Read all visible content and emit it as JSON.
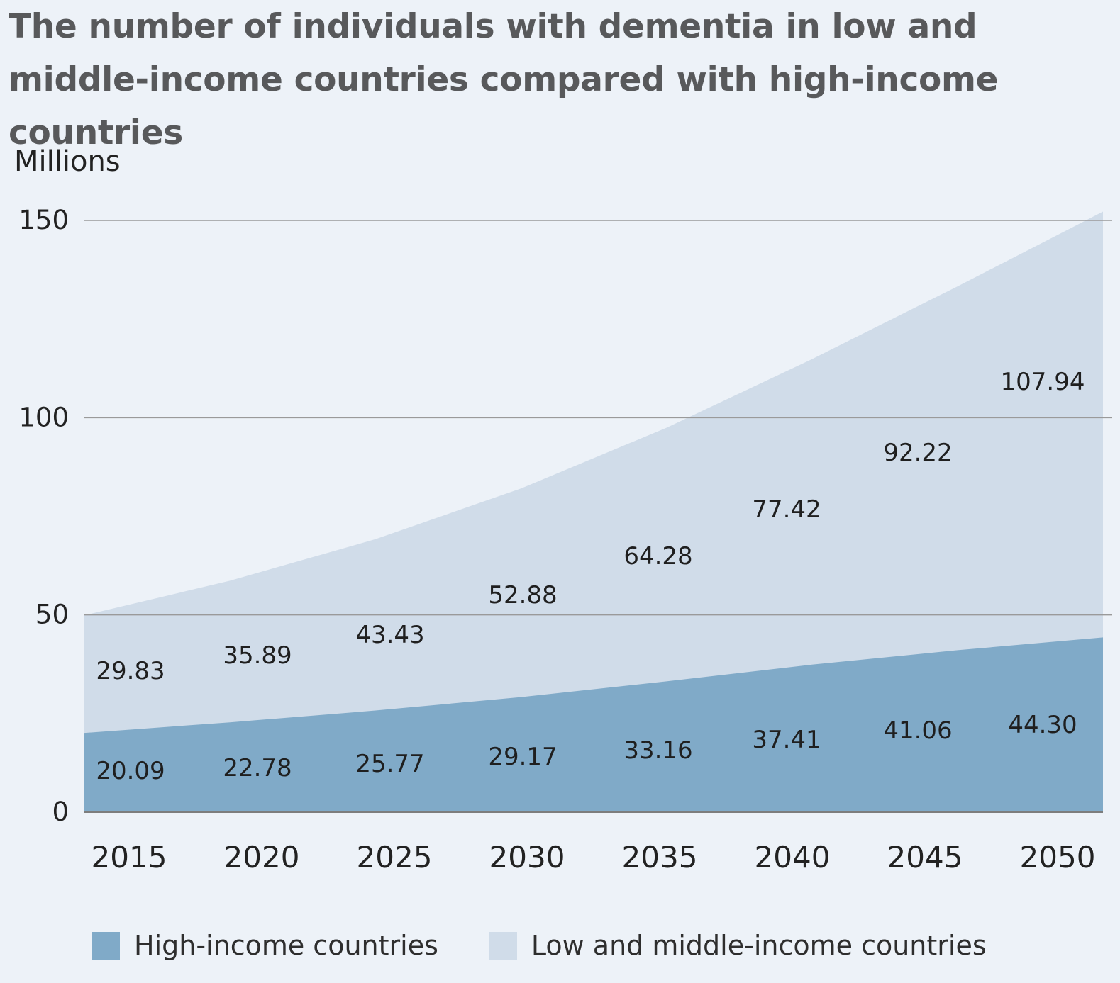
{
  "chart_data": {
    "type": "area",
    "stacked": true,
    "title": "The number of individuals with dementia in low and middle-income countries compared with high-income countries",
    "ylabel": "Millions",
    "xlabel": "",
    "categories": [
      "2015",
      "2020",
      "2025",
      "2030",
      "2035",
      "2040",
      "2045",
      "2050"
    ],
    "yticks": [
      "0",
      "50",
      "100",
      "150"
    ],
    "ylim": [
      0,
      150
    ],
    "grid": true,
    "legend_position": "bottom",
    "series": [
      {
        "name": "High-income countries",
        "color": "#80aac8",
        "values": [
          20.09,
          22.78,
          25.77,
          29.17,
          33.16,
          37.41,
          41.06,
          44.3
        ],
        "labels": [
          "20.09",
          "22.78",
          "25.77",
          "29.17",
          "33.16",
          "37.41",
          "41.06",
          "44.30"
        ]
      },
      {
        "name": "Low and middle-income countries",
        "color": "#d0dce9",
        "values": [
          29.83,
          35.89,
          43.43,
          52.88,
          64.28,
          77.42,
          92.22,
          107.94
        ],
        "labels": [
          "29.83",
          "35.89",
          "43.43",
          "52.88",
          "64.28",
          "77.42",
          "92.22",
          "107.94"
        ]
      }
    ]
  }
}
